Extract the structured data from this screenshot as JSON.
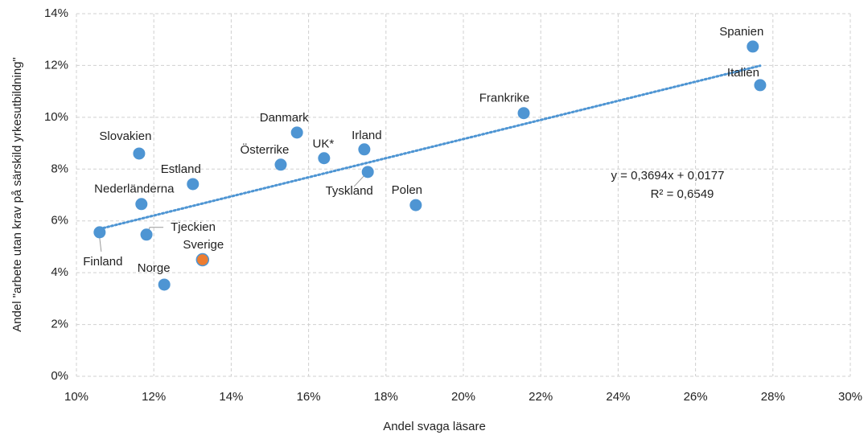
{
  "chart_data": {
    "type": "scatter",
    "x_label": "Andel svaga läsare",
    "y_label": "Andel \"arbete utan krav på särskild yrkesutbildning\"",
    "labels": [
      "Spanien",
      "Italien",
      "Frankrike",
      "Danmark",
      "Irland",
      "UK*",
      "Österrike",
      "Tyskland",
      "Slovakien",
      "Estland",
      "Nederländerna",
      "Polen",
      "Finland",
      "Tjeckien",
      "Sverige",
      "Norge"
    ],
    "x": [
      27.48,
      27.67,
      21.56,
      15.7,
      17.44,
      16.4,
      15.28,
      17.53,
      11.62,
      13.01,
      11.68,
      18.77,
      10.6,
      11.81,
      13.26,
      12.27
    ],
    "y": [
      12.73,
      11.24,
      10.16,
      9.41,
      8.76,
      8.42,
      8.17,
      7.89,
      8.6,
      7.42,
      6.65,
      6.61,
      5.56,
      5.47,
      4.5,
      3.54
    ],
    "colors": [
      "#4e95d3",
      "#4e95d3",
      "#4e95d3",
      "#4e95d3",
      "#4e95d3",
      "#4e95d3",
      "#4e95d3",
      "#4e95d3",
      "#4e95d3",
      "#4e95d3",
      "#4e95d3",
      "#4e95d3",
      "#4e95d3",
      "#4e95d3",
      "#ed7d31",
      "#4e95d3"
    ],
    "trendline": {
      "x": [
        10.6,
        27.67
      ],
      "y": [
        5.69,
        11.99
      ],
      "color": "#4e95d3"
    },
    "annotations": [
      "y = 0,3694x + 0,0177",
      "R² = 0,6549"
    ],
    "xlim": [
      10,
      30
    ],
    "xticks": [
      {
        "value": 10,
        "label": "10%"
      },
      {
        "value": 12,
        "label": "12%"
      },
      {
        "value": 14,
        "label": "14%"
      },
      {
        "value": 16,
        "label": "16%"
      },
      {
        "value": 18,
        "label": "18%"
      },
      {
        "value": 20,
        "label": "20%"
      },
      {
        "value": 22,
        "label": "22%"
      },
      {
        "value": 24,
        "label": "24%"
      },
      {
        "value": 26,
        "label": "26%"
      },
      {
        "value": 28,
        "label": "28%"
      },
      {
        "value": 30,
        "label": "30%"
      }
    ],
    "ylim": [
      0,
      14
    ],
    "yticks": [
      {
        "value": 0,
        "label": "0%"
      },
      {
        "value": 2,
        "label": "2%"
      },
      {
        "value": 4,
        "label": "4%"
      },
      {
        "value": 6,
        "label": "6%"
      },
      {
        "value": 8,
        "label": "8%"
      },
      {
        "value": 10,
        "label": "10%"
      },
      {
        "value": 12,
        "label": "12%"
      },
      {
        "value": 14,
        "label": "14%"
      }
    ],
    "grid": true
  }
}
